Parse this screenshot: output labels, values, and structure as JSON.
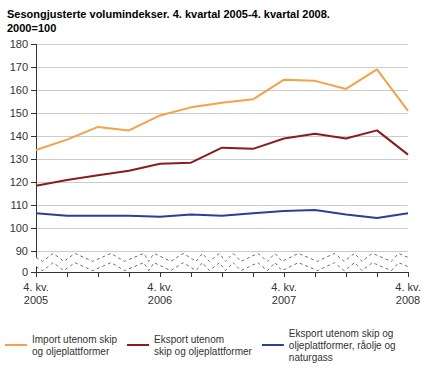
{
  "chart_data": {
    "type": "line",
    "title": "Sesongjusterte volumindekser. 4. kvartal 2005-4. kvartal 2008.\n2000=100",
    "categories": [
      "4. kv.\n2005",
      null,
      null,
      null,
      "4. kv.\n2006",
      null,
      null,
      null,
      "4. kv.\n2007",
      null,
      null,
      null,
      "4. kv.\n2008"
    ],
    "series": [
      {
        "name": "Import utenom skip\nog oljeplattformer",
        "color": "#f5a247",
        "values": [
          134,
          138.5,
          144,
          142.5,
          149,
          152.5,
          154.5,
          156,
          164.5,
          164,
          160.5,
          169,
          151
        ]
      },
      {
        "name": "Eksport utenom\nskip og oljeplattformer",
        "color": "#8b1c1c",
        "values": [
          118.5,
          121,
          123,
          125,
          128,
          128.5,
          135,
          134.5,
          139,
          141,
          139,
          142.5,
          132
        ]
      },
      {
        "name": "Eksport utenom skip og\noljeplattformer, råolje og\nnaturgass",
        "color": "#2b3f99",
        "values": [
          106.5,
          105.5,
          105.5,
          105.5,
          105,
          106,
          105.5,
          106.5,
          107.5,
          108,
          106,
          104.5,
          106.5
        ]
      }
    ],
    "ylim": [
      0,
      180
    ],
    "yticks": [
      0,
      90,
      100,
      110,
      120,
      130,
      140,
      150,
      160,
      170,
      180
    ],
    "grid": true,
    "legend": "bottom"
  }
}
